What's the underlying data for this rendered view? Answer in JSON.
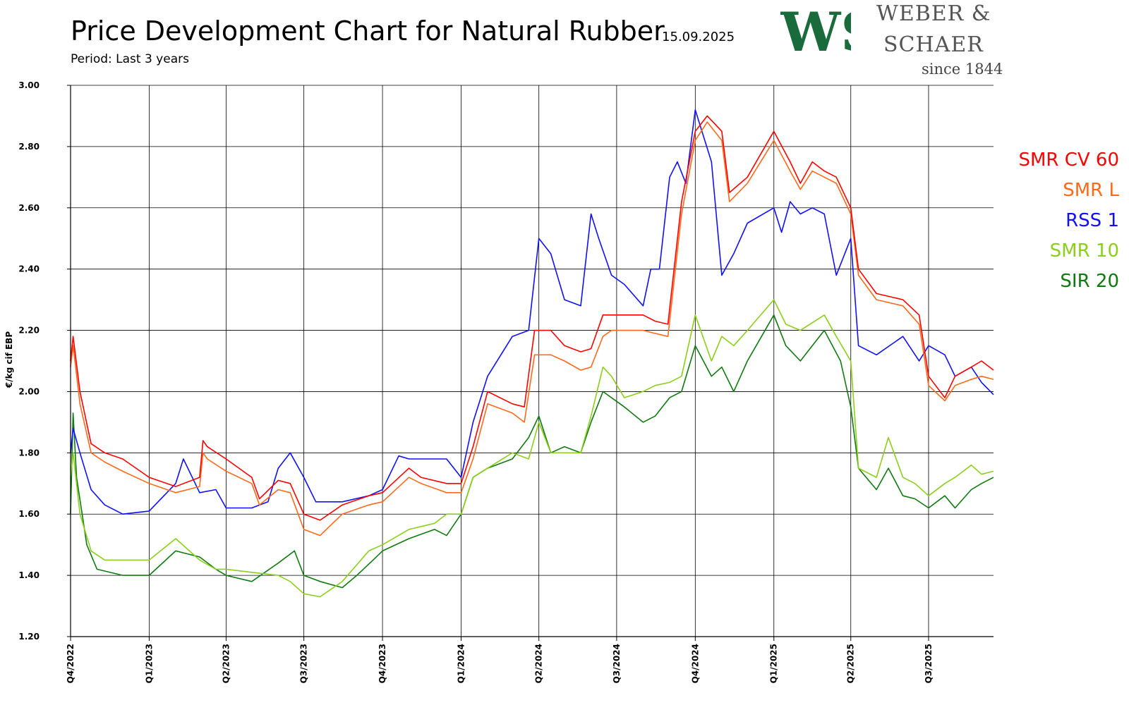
{
  "header": {
    "title": "Price Development Chart for Natural Rubber",
    "date": "15.09.2025",
    "subtitle": "Period: Last 3 years"
  },
  "logo": {
    "monogram": "WS",
    "line1": "WEBER &",
    "line2": "SCHAER",
    "line3": "since 1844",
    "color": "#1a6b3c"
  },
  "chart_data": {
    "type": "line",
    "ylabel": "€/kg cif EBP",
    "ylim": [
      1.2,
      3.0
    ],
    "yticks": [
      "1.20",
      "1.40",
      "1.60",
      "1.80",
      "2.00",
      "2.20",
      "2.40",
      "2.60",
      "2.80",
      "3.00"
    ],
    "x_domain": [
      "2022-10-01",
      "2025-09-15"
    ],
    "quarters": [
      {
        "label": "Q4/2022",
        "date": "2022-10-01"
      },
      {
        "label": "Q1/2023",
        "date": "2023-01-01"
      },
      {
        "label": "Q2/2023",
        "date": "2023-04-01"
      },
      {
        "label": "Q3/2023",
        "date": "2023-07-01"
      },
      {
        "label": "Q4/2023",
        "date": "2023-10-01"
      },
      {
        "label": "Q1/2024",
        "date": "2024-01-01"
      },
      {
        "label": "Q2/2024",
        "date": "2024-04-01"
      },
      {
        "label": "Q3/2024",
        "date": "2024-07-01"
      },
      {
        "label": "Q4/2024",
        "date": "2024-10-01"
      },
      {
        "label": "Q1/2025",
        "date": "2025-01-01"
      },
      {
        "label": "Q2/2025",
        "date": "2025-04-01"
      },
      {
        "label": "Q3/2025",
        "date": "2025-07-01"
      }
    ],
    "grid": true,
    "legend_position": "right",
    "series": [
      {
        "name": "SMR CV 60",
        "color": "#ff0000",
        "dates": [
          "2022-10-01",
          "2022-10-04",
          "2022-10-12",
          "2022-10-25",
          "2022-11-10",
          "2022-12-01",
          "2023-01-01",
          "2023-02-01",
          "2023-03-01",
          "2023-03-05",
          "2023-03-10",
          "2023-04-01",
          "2023-05-01",
          "2023-05-10",
          "2023-06-01",
          "2023-06-15",
          "2023-07-01",
          "2023-07-20",
          "2023-08-15",
          "2023-09-15",
          "2023-10-01",
          "2023-11-01",
          "2023-11-15",
          "2023-12-15",
          "2024-01-01",
          "2024-01-15",
          "2024-02-01",
          "2024-03-01",
          "2024-03-15",
          "2024-03-27",
          "2024-04-15",
          "2024-05-01",
          "2024-05-20",
          "2024-06-01",
          "2024-06-15",
          "2024-06-25",
          "2024-07-10",
          "2024-08-01",
          "2024-08-15",
          "2024-08-30",
          "2024-09-15",
          "2024-10-01",
          "2024-10-15",
          "2024-11-01",
          "2024-11-10",
          "2024-12-01",
          "2025-01-01",
          "2025-01-20",
          "2025-02-01",
          "2025-02-15",
          "2025-03-01",
          "2025-03-15",
          "2025-04-01",
          "2025-04-10",
          "2025-05-01",
          "2025-06-01",
          "2025-06-20",
          "2025-07-01",
          "2025-07-20",
          "2025-08-01",
          "2025-08-20",
          "2025-09-01",
          "2025-09-15"
        ],
        "values": [
          2.1,
          2.18,
          2.0,
          1.83,
          1.8,
          1.78,
          1.72,
          1.69,
          1.72,
          1.84,
          1.82,
          1.78,
          1.72,
          1.65,
          1.71,
          1.7,
          1.6,
          1.58,
          1.63,
          1.66,
          1.67,
          1.75,
          1.72,
          1.7,
          1.7,
          1.82,
          2.0,
          1.96,
          1.95,
          2.2,
          2.2,
          2.15,
          2.13,
          2.14,
          2.25,
          2.25,
          2.25,
          2.25,
          2.23,
          2.22,
          2.62,
          2.85,
          2.9,
          2.85,
          2.65,
          2.7,
          2.85,
          2.75,
          2.68,
          2.75,
          2.72,
          2.7,
          2.6,
          2.4,
          2.32,
          2.3,
          2.25,
          2.05,
          1.98,
          2.05,
          2.08,
          2.1,
          2.07
        ]
      },
      {
        "name": "SMR L",
        "color": "#ff6a1a",
        "dates": [
          "2022-10-01",
          "2022-10-04",
          "2022-10-12",
          "2022-10-25",
          "2022-11-10",
          "2022-12-01",
          "2023-01-01",
          "2023-02-01",
          "2023-03-01",
          "2023-03-05",
          "2023-03-10",
          "2023-04-01",
          "2023-05-01",
          "2023-05-10",
          "2023-06-01",
          "2023-06-15",
          "2023-07-01",
          "2023-07-20",
          "2023-08-15",
          "2023-09-15",
          "2023-10-01",
          "2023-11-01",
          "2023-11-15",
          "2023-12-15",
          "2024-01-01",
          "2024-01-15",
          "2024-02-01",
          "2024-03-01",
          "2024-03-15",
          "2024-03-27",
          "2024-04-15",
          "2024-05-01",
          "2024-05-20",
          "2024-06-01",
          "2024-06-15",
          "2024-06-25",
          "2024-07-10",
          "2024-08-01",
          "2024-08-15",
          "2024-08-30",
          "2024-09-15",
          "2024-10-01",
          "2024-10-15",
          "2024-11-01",
          "2024-11-10",
          "2024-12-01",
          "2025-01-01",
          "2025-01-20",
          "2025-02-01",
          "2025-02-15",
          "2025-03-01",
          "2025-03-15",
          "2025-04-01",
          "2025-04-10",
          "2025-05-01",
          "2025-06-01",
          "2025-06-20",
          "2025-07-01",
          "2025-07-20",
          "2025-08-01",
          "2025-08-20",
          "2025-09-01",
          "2025-09-15"
        ],
        "values": [
          2.08,
          2.15,
          1.96,
          1.8,
          1.77,
          1.74,
          1.7,
          1.67,
          1.69,
          1.8,
          1.78,
          1.74,
          1.7,
          1.63,
          1.68,
          1.67,
          1.55,
          1.53,
          1.6,
          1.63,
          1.64,
          1.72,
          1.7,
          1.67,
          1.67,
          1.78,
          1.96,
          1.93,
          1.9,
          2.12,
          2.12,
          2.1,
          2.07,
          2.08,
          2.18,
          2.2,
          2.2,
          2.2,
          2.19,
          2.18,
          2.58,
          2.82,
          2.88,
          2.82,
          2.62,
          2.68,
          2.82,
          2.72,
          2.66,
          2.72,
          2.7,
          2.68,
          2.58,
          2.38,
          2.3,
          2.28,
          2.22,
          2.02,
          1.97,
          2.02,
          2.04,
          2.05,
          2.04
        ]
      },
      {
        "name": "RSS 1",
        "color": "#1010ff",
        "dates": [
          "2022-10-01",
          "2022-10-04",
          "2022-10-12",
          "2022-10-25",
          "2022-11-10",
          "2022-12-01",
          "2023-01-01",
          "2023-02-01",
          "2023-02-10",
          "2023-03-01",
          "2023-03-20",
          "2023-04-01",
          "2023-05-01",
          "2023-05-20",
          "2023-06-01",
          "2023-06-15",
          "2023-07-01",
          "2023-07-15",
          "2023-08-15",
          "2023-09-15",
          "2023-10-01",
          "2023-10-20",
          "2023-11-01",
          "2023-12-01",
          "2023-12-15",
          "2024-01-01",
          "2024-01-15",
          "2024-02-01",
          "2024-03-01",
          "2024-03-20",
          "2024-04-01",
          "2024-04-15",
          "2024-05-01",
          "2024-05-20",
          "2024-06-01",
          "2024-06-10",
          "2024-06-25",
          "2024-07-10",
          "2024-08-01",
          "2024-08-10",
          "2024-08-20",
          "2024-09-01",
          "2024-09-10",
          "2024-09-20",
          "2024-10-01",
          "2024-10-20",
          "2024-11-01",
          "2024-11-15",
          "2024-12-01",
          "2025-01-01",
          "2025-01-10",
          "2025-01-20",
          "2025-02-01",
          "2025-02-15",
          "2025-03-01",
          "2025-03-15",
          "2025-04-01",
          "2025-04-10",
          "2025-05-01",
          "2025-06-01",
          "2025-06-20",
          "2025-07-01",
          "2025-07-20",
          "2025-08-01",
          "2025-08-20",
          "2025-09-01",
          "2025-09-15"
        ],
        "values": [
          1.8,
          1.88,
          1.8,
          1.68,
          1.63,
          1.6,
          1.61,
          1.7,
          1.78,
          1.67,
          1.68,
          1.62,
          1.62,
          1.64,
          1.75,
          1.8,
          1.72,
          1.64,
          1.64,
          1.66,
          1.68,
          1.79,
          1.78,
          1.78,
          1.78,
          1.72,
          1.9,
          2.05,
          2.18,
          2.2,
          2.5,
          2.45,
          2.3,
          2.28,
          2.58,
          2.5,
          2.38,
          2.35,
          2.28,
          2.4,
          2.4,
          2.7,
          2.75,
          2.68,
          2.92,
          2.75,
          2.38,
          2.45,
          2.55,
          2.6,
          2.52,
          2.62,
          2.58,
          2.6,
          2.58,
          2.38,
          2.5,
          2.15,
          2.12,
          2.18,
          2.1,
          2.15,
          2.12,
          2.05,
          2.08,
          2.03,
          1.99
        ]
      },
      {
        "name": "SMR 10",
        "color": "#8ccf1a",
        "dates": [
          "2022-10-01",
          "2022-10-04",
          "2022-10-12",
          "2022-10-25",
          "2022-11-10",
          "2022-12-01",
          "2023-01-01",
          "2023-02-01",
          "2023-03-01",
          "2023-03-20",
          "2023-04-01",
          "2023-05-01",
          "2023-06-01",
          "2023-06-15",
          "2023-07-01",
          "2023-07-20",
          "2023-08-15",
          "2023-09-15",
          "2023-10-01",
          "2023-11-01",
          "2023-12-01",
          "2023-12-15",
          "2024-01-01",
          "2024-01-15",
          "2024-02-01",
          "2024-03-01",
          "2024-03-20",
          "2024-04-01",
          "2024-04-15",
          "2024-05-01",
          "2024-05-20",
          "2024-06-01",
          "2024-06-15",
          "2024-06-25",
          "2024-07-10",
          "2024-08-01",
          "2024-08-15",
          "2024-09-01",
          "2024-09-15",
          "2024-10-01",
          "2024-10-20",
          "2024-11-01",
          "2024-11-15",
          "2024-12-01",
          "2025-01-01",
          "2025-01-15",
          "2025-02-01",
          "2025-03-01",
          "2025-03-15",
          "2025-04-01",
          "2025-04-10",
          "2025-05-01",
          "2025-05-15",
          "2025-06-01",
          "2025-06-15",
          "2025-07-01",
          "2025-07-20",
          "2025-08-01",
          "2025-08-20",
          "2025-09-01",
          "2025-09-15"
        ],
        "values": [
          1.72,
          1.8,
          1.6,
          1.48,
          1.45,
          1.45,
          1.45,
          1.52,
          1.45,
          1.42,
          1.42,
          1.41,
          1.4,
          1.38,
          1.34,
          1.33,
          1.38,
          1.48,
          1.5,
          1.55,
          1.57,
          1.6,
          1.6,
          1.72,
          1.75,
          1.8,
          1.78,
          1.9,
          1.8,
          1.8,
          1.8,
          1.92,
          2.08,
          2.05,
          1.98,
          2.0,
          2.02,
          2.03,
          2.05,
          2.25,
          2.1,
          2.18,
          2.15,
          2.2,
          2.3,
          2.22,
          2.2,
          2.25,
          2.18,
          2.1,
          1.75,
          1.72,
          1.85,
          1.72,
          1.7,
          1.66,
          1.7,
          1.72,
          1.76,
          1.73,
          1.74
        ]
      },
      {
        "name": "SIR 20",
        "color": "#0f7a0f",
        "dates": [
          "2022-10-01",
          "2022-10-04",
          "2022-10-08",
          "2022-10-20",
          "2022-11-01",
          "2022-12-01",
          "2023-01-01",
          "2023-02-01",
          "2023-03-01",
          "2023-03-20",
          "2023-04-01",
          "2023-05-01",
          "2023-06-01",
          "2023-06-20",
          "2023-07-01",
          "2023-07-20",
          "2023-08-15",
          "2023-09-01",
          "2023-09-20",
          "2023-10-01",
          "2023-11-01",
          "2023-12-01",
          "2023-12-15",
          "2024-01-01",
          "2024-01-15",
          "2024-02-01",
          "2024-03-01",
          "2024-03-20",
          "2024-04-01",
          "2024-04-15",
          "2024-05-01",
          "2024-05-20",
          "2024-06-01",
          "2024-06-15",
          "2024-07-10",
          "2024-08-01",
          "2024-08-15",
          "2024-09-01",
          "2024-09-15",
          "2024-10-01",
          "2024-10-20",
          "2024-11-01",
          "2024-11-15",
          "2024-12-01",
          "2025-01-01",
          "2025-01-15",
          "2025-02-01",
          "2025-03-01",
          "2025-03-20",
          "2025-04-01",
          "2025-04-10",
          "2025-05-01",
          "2025-05-15",
          "2025-06-01",
          "2025-06-15",
          "2025-07-01",
          "2025-07-20",
          "2025-08-01",
          "2025-08-20",
          "2025-09-01",
          "2025-09-15"
        ],
        "values": [
          1.6,
          1.93,
          1.72,
          1.5,
          1.42,
          1.4,
          1.4,
          1.48,
          1.46,
          1.42,
          1.4,
          1.38,
          1.44,
          1.48,
          1.4,
          1.38,
          1.36,
          1.4,
          1.45,
          1.48,
          1.52,
          1.55,
          1.53,
          1.6,
          1.72,
          1.75,
          1.78,
          1.85,
          1.92,
          1.8,
          1.82,
          1.8,
          1.9,
          2.0,
          1.95,
          1.9,
          1.92,
          1.98,
          2.0,
          2.15,
          2.05,
          2.08,
          2.0,
          2.1,
          2.25,
          2.15,
          2.1,
          2.2,
          2.1,
          1.95,
          1.75,
          1.68,
          1.75,
          1.66,
          1.65,
          1.62,
          1.66,
          1.62,
          1.68,
          1.7,
          1.72
        ]
      }
    ]
  }
}
